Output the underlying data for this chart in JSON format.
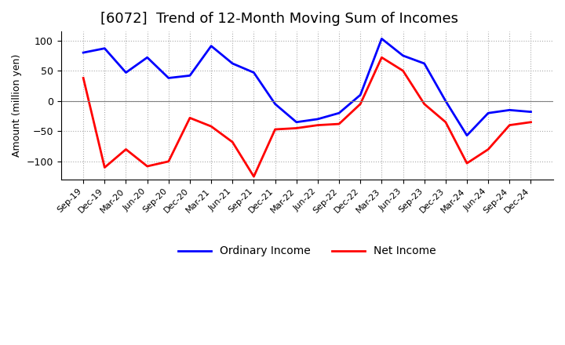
{
  "title": "[6072]  Trend of 12-Month Moving Sum of Incomes",
  "ylabel": "Amount (million yen)",
  "x_labels": [
    "Sep-19",
    "Dec-19",
    "Mar-20",
    "Jun-20",
    "Sep-20",
    "Dec-20",
    "Mar-21",
    "Jun-21",
    "Sep-21",
    "Dec-21",
    "Mar-22",
    "Jun-22",
    "Sep-22",
    "Dec-22",
    "Mar-23",
    "Jun-23",
    "Sep-23",
    "Dec-23",
    "Mar-24",
    "Jun-24",
    "Sep-24",
    "Dec-24"
  ],
  "ordinary_income": [
    80,
    87,
    47,
    72,
    38,
    42,
    91,
    62,
    47,
    -5,
    -35,
    -30,
    -20,
    10,
    103,
    75,
    62,
    0,
    -57,
    -20,
    -15,
    -18
  ],
  "net_income": [
    38,
    -110,
    -80,
    -108,
    -100,
    -28,
    -42,
    -68,
    -125,
    -47,
    -45,
    -40,
    -38,
    -5,
    72,
    50,
    -5,
    -35,
    -103,
    -80,
    -40,
    -35
  ],
  "ordinary_income_color": "#0000FF",
  "net_income_color": "#FF0000",
  "background_color": "#FFFFFF",
  "grid_color": "#AAAAAA",
  "ylim": [
    -130,
    115
  ],
  "yticks": [
    -100,
    -50,
    0,
    50,
    100
  ],
  "legend_ordinary": "Ordinary Income",
  "legend_net": "Net Income",
  "title_fontsize": 13,
  "axis_fontsize": 9,
  "line_width": 2.0
}
